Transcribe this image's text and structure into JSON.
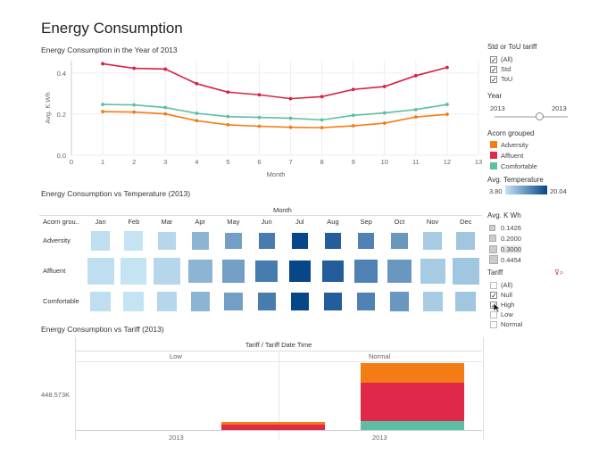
{
  "page": {
    "title": "Energy Consumption"
  },
  "line_section": {
    "title": "Energy Consumption in the Year of 2013"
  },
  "heatmap_section": {
    "title": "Energy Consumption vs Temperature (2013)",
    "col_header": "Month",
    "row_header": "Acorn grou..",
    "rows": [
      "Adversity",
      "Affluent",
      "Comfortable"
    ]
  },
  "tariff_section": {
    "title": "Energy Consumption vs Tariff (2013)",
    "header": "Tariff  /  Tariff Date Time",
    "col_low": "Low",
    "col_normal": "Normal",
    "y_label": "448.573K",
    "x_low": "2013",
    "x_normal": "2013"
  },
  "sidebar": {
    "std_tou": {
      "title": "Std or ToU tariff",
      "items": [
        "(All)",
        "Std",
        "ToU"
      ]
    },
    "year": {
      "title": "Year",
      "min": "2013",
      "max": "2013"
    },
    "acorn": {
      "title": "Acorn grouped",
      "items": [
        {
          "label": "Adversity",
          "color": "#f47c14"
        },
        {
          "label": "Affluent",
          "color": "#e0284a"
        },
        {
          "label": "Comfortable",
          "color": "#5cbfa3"
        }
      ]
    },
    "avg_temp": {
      "title": "Avg. Temperature",
      "min": "3.80",
      "max": "20.04"
    },
    "avg_kwh": {
      "title": "Avg. K Wh",
      "items": [
        "0.1426",
        "0.2000",
        "0.3000",
        "0.4454"
      ]
    },
    "tariff": {
      "title": "Tariff",
      "items": [
        {
          "label": "(All)",
          "checked": false
        },
        {
          "label": "Null",
          "checked": true
        },
        {
          "label": "High",
          "checked": true
        },
        {
          "label": "Low",
          "checked": false
        },
        {
          "label": "Normal",
          "checked": false
        }
      ]
    }
  },
  "chart_data": [
    {
      "type": "line",
      "title": "Energy Consumption in the Year of 2013",
      "xlabel": "Month",
      "ylabel": "Avg. K Wh",
      "x": [
        1,
        2,
        3,
        4,
        5,
        6,
        7,
        8,
        9,
        10,
        11,
        12
      ],
      "xlim": [
        0,
        13
      ],
      "ylim": [
        0,
        0.46
      ],
      "xticks": [
        "0",
        "1",
        "2",
        "3",
        "4",
        "5",
        "6",
        "7",
        "8",
        "9",
        "10",
        "11",
        "12",
        "13"
      ],
      "yticks": [
        "0.0",
        "0.2",
        "0.4"
      ],
      "series": [
        {
          "name": "Affluent",
          "color": "#d6213f",
          "values": [
            0.445,
            0.423,
            0.419,
            0.348,
            0.307,
            0.294,
            0.275,
            0.285,
            0.32,
            0.334,
            0.387,
            0.427
          ]
        },
        {
          "name": "Comfortable",
          "color": "#5cbfa3",
          "values": [
            0.247,
            0.245,
            0.232,
            0.204,
            0.188,
            0.184,
            0.18,
            0.172,
            0.194,
            0.206,
            0.222,
            0.247
          ]
        },
        {
          "name": "Adversity",
          "color": "#f47c14",
          "values": [
            0.212,
            0.21,
            0.201,
            0.168,
            0.148,
            0.141,
            0.136,
            0.134,
            0.143,
            0.156,
            0.186,
            0.199
          ]
        }
      ]
    },
    {
      "type": "heatmap",
      "title": "Energy Consumption vs Temperature (2013)",
      "months": [
        "Jan",
        "Feb",
        "Mar",
        "Apr",
        "May",
        "Jun",
        "Jul",
        "Aug",
        "Sep",
        "Oct",
        "Nov",
        "Dec"
      ],
      "groups": [
        "Adversity",
        "Affluent",
        "Comfortable"
      ],
      "temperature": [
        4.2,
        3.8,
        5.1,
        8.6,
        10.8,
        14.5,
        20.04,
        17.6,
        13.9,
        11.7,
        6.3,
        6.8
      ],
      "avg_kwh": [
        [
          0.212,
          0.21,
          0.201,
          0.168,
          0.148,
          0.141,
          0.136,
          0.134,
          0.143,
          0.156,
          0.186,
          0.199
        ],
        [
          0.445,
          0.423,
          0.419,
          0.348,
          0.307,
          0.294,
          0.275,
          0.285,
          0.32,
          0.334,
          0.387,
          0.427
        ],
        [
          0.247,
          0.245,
          0.232,
          0.204,
          0.188,
          0.184,
          0.18,
          0.172,
          0.194,
          0.206,
          0.222,
          0.247
        ]
      ],
      "size_legend": [
        0.1426,
        0.2,
        0.3,
        0.4454
      ],
      "color_range": [
        3.8,
        20.04
      ]
    },
    {
      "type": "bar",
      "title": "Energy Consumption vs Tariff (2013)",
      "categories": [
        "Low 2013",
        "Normal 2013"
      ],
      "y_reference_label": "448.573K",
      "series": [
        {
          "name": "Comfortable",
          "color": "#5cbfa3",
          "values": [
            0,
            25000
          ]
        },
        {
          "name": "Affluent",
          "color": "#e0284a",
          "values": [
            15000,
            112000
          ]
        },
        {
          "name": "Adversity",
          "color": "#f47c14",
          "values": [
            8000,
            57000
          ]
        }
      ]
    }
  ]
}
